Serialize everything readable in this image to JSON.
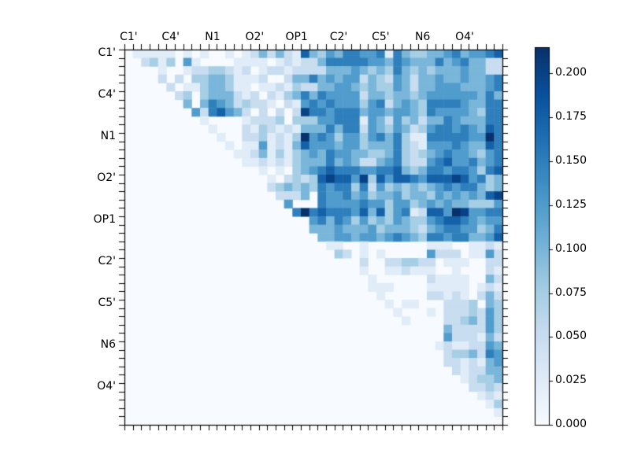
{
  "figure": {
    "background_color": "#ffffff",
    "plot_background_color": "#f7fbff",
    "axis_color": "#000000",
    "text_color": "#000000"
  },
  "chart_data": {
    "type": "heatmap",
    "title": "",
    "description": "Upper-triangular 45x45 matrix heatmap, Blues colormap, atom-name group labels every 5 cells on both axes, vertical colorbar on the right",
    "matrix_size": 45,
    "upper_triangular": true,
    "grid": false,
    "axis_labels": [
      "C1'",
      "C4'",
      "N1",
      "O2'",
      "OP1",
      "C2'",
      "C5'",
      "N6",
      "O4'"
    ],
    "label_cell_indices": [
      0,
      5,
      10,
      15,
      20,
      25,
      30,
      35,
      40
    ],
    "vmin": 0.0,
    "vmax": 0.215,
    "value_bins": [
      0.0,
      0.025,
      0.05,
      0.075,
      0.1,
      0.125,
      0.15,
      0.175,
      0.2,
      0.215
    ],
    "matrix_rows_binned": [
      "011111010100101242421743546655616433445645567",
      "002313051000011110121224666665546544464564422",
      "000010012233212012212222444543436434344454422",
      "000020203344311120024464545524325424454454456",
      "000002011344311011213224455434335424455544456",
      "000000230344421202134646555524434434555555464",
      "000000040465423221021565655535624543666654466",
      "000000005267542020202866566645545543655554366",
      "000000000100001222303335566615425342446544466",
      "000000000010002132121444646625435423566565476",
      "000000000001002231213956535535646311666665596",
      "000000000000101151214755545534446321555654476",
      "000000000000011241313454655443346323456554356",
      "000000000000001121213444645422456322567556456",
      "000000000000000010103456766655667434665665367",
      "000000000000000001023237877583757765777875634",
      "000000000000000002343436566362534343456566434",
      "000000000000000000222406556453445344354545478",
      "000000000000000000050006555565535534545443335",
      "000000000000000000006967666574735612775985566",
      "000000000000000000000056465353435433567765455",
      "000000000000000000000044454445344432456655346",
      "000000000000000000000004455455456543665664457",
      "000000000000000000000000110010000000111001121",
      "000000000000000000000000032010100000522201152",
      "000000000000000000000000000020022332201110022",
      "000000000000000000000000000010011211100100021",
      "000000000000000000000000000001000000211110042",
      "000000000000000000000000000001110000111110121",
      "000000000000000000000000000000100000221210242",
      "000000000000000000000000000000010110002223043",
      "000000000000000000000000000000001000102223253",
      "000000000000000000000000000000000100002234253",
      "000000000000000000000000000000000000004222253",
      "000000000000000000000000000000000000005222142",
      "000000000000000000000000000000000000012112254",
      "000000000000000000000000000000000000002334265",
      "000000000000000000000000000000000000002212145",
      "000000000000000000000000000000000000000212244",
      "000000000000000000000000000000000000000012334",
      "000000000000000000000000000000000000000002232",
      "000000000000000000000000000000000000000000121",
      "000000000000000000000000000000000000000000013",
      "000000000000000000000000000000000000000000001",
      "000000000000000000000000000000000000000000000"
    ],
    "colormap": {
      "name": "Blues",
      "stops": [
        [
          0.0,
          "#f7fbff"
        ],
        [
          0.125,
          "#deebf7"
        ],
        [
          0.25,
          "#c6dbef"
        ],
        [
          0.375,
          "#9ecae1"
        ],
        [
          0.5,
          "#6baed6"
        ],
        [
          0.625,
          "#4292c6"
        ],
        [
          0.75,
          "#2171b5"
        ],
        [
          0.875,
          "#08519c"
        ],
        [
          1.0,
          "#08306b"
        ]
      ]
    },
    "colorbar": {
      "position": "right",
      "tick_labels": [
        "0.200",
        "0.175",
        "0.150",
        "0.125",
        "0.100",
        "0.075",
        "0.050",
        "0.025",
        "0.000"
      ],
      "tick_values": [
        0.2,
        0.175,
        0.15,
        0.125,
        0.1,
        0.075,
        0.05,
        0.025,
        0.0
      ]
    }
  }
}
